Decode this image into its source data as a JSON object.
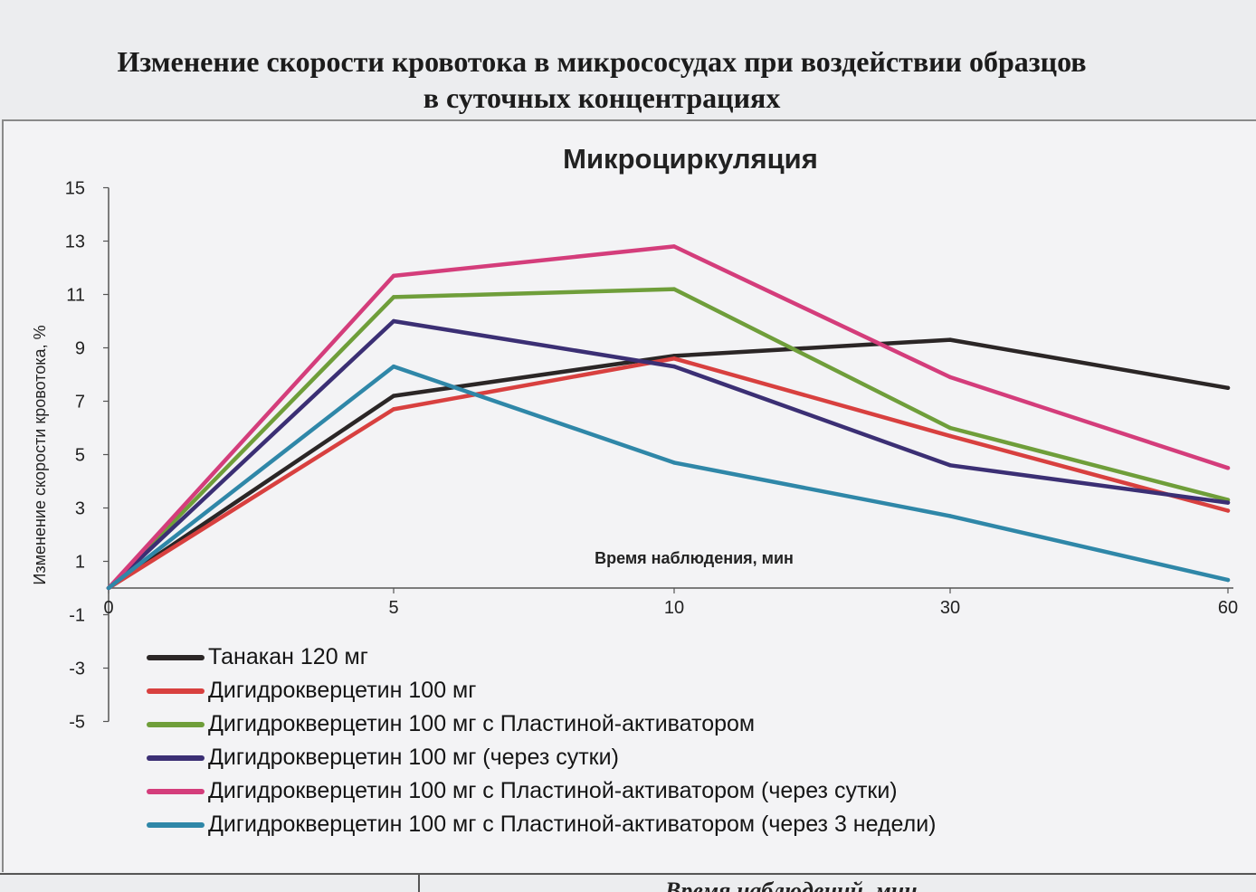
{
  "page": {
    "title_line1": "Изменение скорости кровотока в микрососудах  при воздействии образцов",
    "title_line2": "в суточных концентрациях",
    "bottom_fragment": "Время наблюдений, мин"
  },
  "chart_data": {
    "type": "line",
    "title": "Микроциркуляция",
    "xlabel": "Время наблюдения, мин",
    "ylabel": "Изменение скорости кровотока, %",
    "categories": [
      "0",
      "5",
      "10",
      "30",
      "60"
    ],
    "yticks": [
      15,
      13,
      11,
      9,
      7,
      5,
      3,
      1,
      -1,
      -3,
      -5
    ],
    "ylim": [
      -5,
      15
    ],
    "grid": false,
    "legend_position": "bottom-left",
    "series": [
      {
        "name": "Танакан 120 мг",
        "color": "#2b2626",
        "values": [
          0,
          7.2,
          8.7,
          9.3,
          7.5
        ]
      },
      {
        "name": "Дигидрокверцетин 100 мг",
        "color": "#d8403f",
        "values": [
          0,
          6.7,
          8.6,
          5.7,
          2.9
        ]
      },
      {
        "name": "Дигидрокверцетин 100 мг с Пластиной-активатором",
        "color": "#6f9e3a",
        "values": [
          0,
          10.9,
          11.2,
          6.0,
          3.3
        ]
      },
      {
        "name": "Дигидрокверцетин 100 мг (через сутки)",
        "color": "#3b2f74",
        "values": [
          0,
          10.0,
          8.3,
          4.6,
          3.2
        ]
      },
      {
        "name": "Дигидрокверцетин 100 мг с Пластиной-активатором (через сутки)",
        "color": "#d43d7b",
        "values": [
          0,
          11.7,
          12.8,
          7.9,
          4.5
        ]
      },
      {
        "name": "Дигидрокверцетин 100 мг с Пластиной-активатором (через 3 недели)",
        "color": "#2f87a8",
        "values": [
          0,
          8.3,
          4.7,
          2.7,
          0.3
        ]
      }
    ]
  }
}
